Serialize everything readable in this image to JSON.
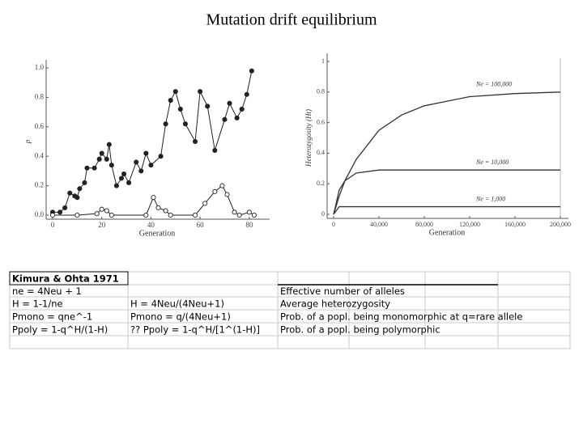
{
  "title": "Mutation drift equilibrium",
  "chart_data": [
    {
      "type": "line",
      "xlabel": "Generation",
      "ylabel": "p",
      "xlim": [
        0,
        85
      ],
      "xticks": [
        0,
        20,
        40,
        60,
        80
      ],
      "ylim": [
        0,
        1
      ],
      "yticks": [
        {
          "value": 0,
          "label": "0.0"
        },
        {
          "value": 0.2,
          "label": "0.2"
        },
        {
          "value": 0.4,
          "label": "0.4"
        },
        {
          "value": 0.6,
          "label": "0.6"
        },
        {
          "value": 0.8,
          "label": "0.8"
        },
        {
          "value": 1,
          "label": "1.0"
        }
      ],
      "series": [
        {
          "name": "filled",
          "color": "#222222",
          "marker": "filled",
          "x": [
            0,
            3,
            5,
            7,
            9,
            10,
            11,
            13,
            14,
            17,
            19,
            20,
            22,
            23,
            24,
            26,
            28,
            29,
            31,
            34,
            36,
            38,
            40,
            44,
            46,
            48,
            50,
            52,
            54,
            58,
            60,
            63,
            66,
            70,
            72,
            75,
            77,
            79,
            81
          ],
          "values": [
            0.02,
            0.02,
            0.05,
            0.15,
            0.13,
            0.12,
            0.18,
            0.22,
            0.32,
            0.32,
            0.38,
            0.42,
            0.38,
            0.48,
            0.34,
            0.2,
            0.25,
            0.28,
            0.22,
            0.36,
            0.3,
            0.42,
            0.34,
            0.4,
            0.62,
            0.78,
            0.84,
            0.72,
            0.62,
            0.5,
            0.84,
            0.74,
            0.44,
            0.65,
            0.76,
            0.66,
            0.72,
            0.82,
            0.98
          ]
        },
        {
          "name": "open",
          "color": "#222222",
          "marker": "open",
          "x": [
            0,
            10,
            18,
            20,
            22,
            24,
            38,
            41,
            43,
            46,
            48,
            58,
            62,
            66,
            69,
            71,
            74,
            76,
            80,
            82
          ],
          "values": [
            0,
            0,
            0.01,
            0.04,
            0.03,
            0,
            0,
            0.12,
            0.05,
            0.03,
            0,
            0,
            0.08,
            0.16,
            0.2,
            0.14,
            0.02,
            0,
            0.02,
            0
          ]
        }
      ]
    },
    {
      "type": "line",
      "xlabel": "Generation",
      "ylabel": "Heterozygosity (Ht)",
      "xlim": [
        0,
        200000
      ],
      "xticks": [
        0,
        {
          "value": 40000,
          "label": "40,000"
        },
        {
          "value": 80000,
          "label": "80,000"
        },
        {
          "value": 120000,
          "label": "120,000"
        },
        {
          "value": 160000,
          "label": "160,000"
        },
        {
          "value": 200000,
          "label": "200,000"
        }
      ],
      "ylim": [
        0,
        1
      ],
      "yticks": [
        0,
        0.2,
        0.4,
        0.6,
        0.8,
        1
      ],
      "x": [
        0,
        5000,
        10000,
        20000,
        40000,
        60000,
        80000,
        120000,
        160000,
        200000
      ],
      "series": [
        {
          "name": "Ne = 100,000",
          "color": "#333333",
          "values": [
            0,
            0.12,
            0.22,
            0.36,
            0.55,
            0.65,
            0.71,
            0.77,
            0.79,
            0.8
          ]
        },
        {
          "name": "Ne = 10,000",
          "color": "#333333",
          "values": [
            0,
            0.16,
            0.22,
            0.27,
            0.29,
            0.29,
            0.29,
            0.29,
            0.29,
            0.29
          ]
        },
        {
          "name": "Ne = 1,000",
          "color": "#333333",
          "values": [
            0,
            0.05,
            0.05,
            0.05,
            0.05,
            0.05,
            0.05,
            0.05,
            0.05,
            0.05
          ]
        }
      ]
    }
  ],
  "table": {
    "header": "Kimura & Ohta 1971",
    "rows": [
      {
        "a": "ne = 4Neu + 1",
        "c": "Effective number of alleles"
      },
      {
        "a": "H = 1-1/ne",
        "b": "H = 4Neu/(4Neu+1)",
        "c": "Average heterozygosity"
      },
      {
        "a": "Pmono = qne^-1",
        "b": "Pmono = q/(4Neu+1)",
        "c": "Prob. of a popl. being monomorphic at q=rare allele"
      },
      {
        "a": "Ppoly = 1-q^H/(1-H)",
        "b": "?? Ppoly = 1-q^H/[1^(1-H)]",
        "c": "Prob. of a popl. being polymorphic"
      }
    ]
  }
}
